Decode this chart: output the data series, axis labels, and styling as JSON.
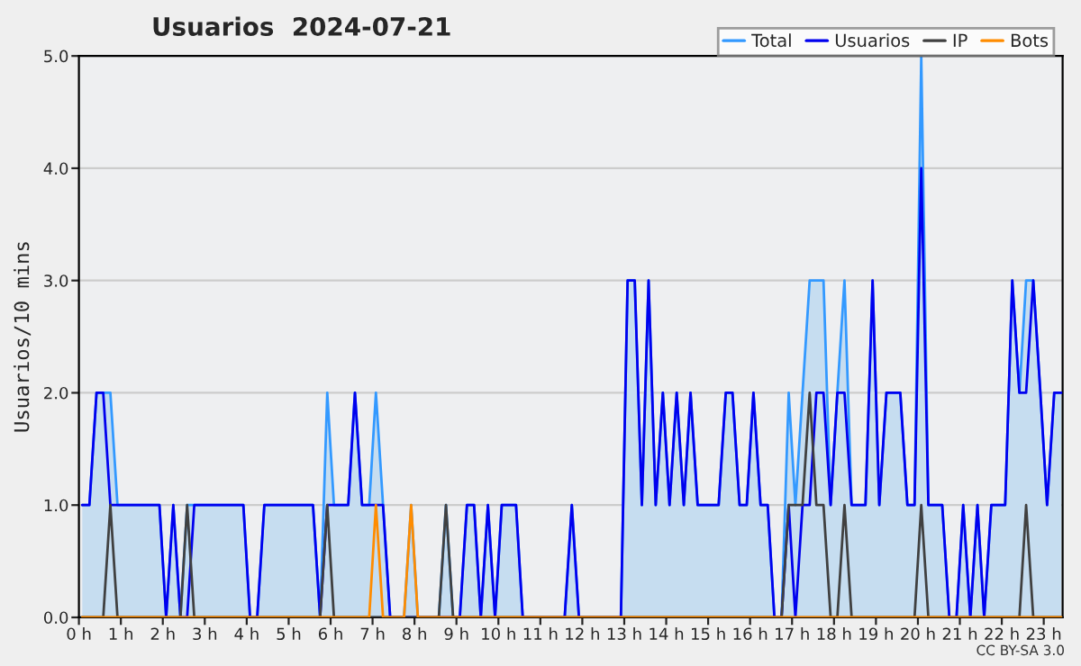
{
  "chart_data": {
    "type": "line",
    "title": "Usuarios  2024-07-21",
    "ylabel": "Usuarios/10 mins",
    "x": [
      0.08,
      0.25,
      0.42,
      0.58,
      0.75,
      0.92,
      1.08,
      1.25,
      1.42,
      1.58,
      1.75,
      1.92,
      2.08,
      2.25,
      2.42,
      2.58,
      2.75,
      2.92,
      3.08,
      3.25,
      3.42,
      3.58,
      3.75,
      3.92,
      4.08,
      4.25,
      4.42,
      4.58,
      4.75,
      4.92,
      5.08,
      5.25,
      5.42,
      5.58,
      5.75,
      5.92,
      6.08,
      6.25,
      6.42,
      6.58,
      6.75,
      6.92,
      7.08,
      7.25,
      7.42,
      7.58,
      7.75,
      7.92,
      8.08,
      8.25,
      8.42,
      8.58,
      8.75,
      8.92,
      9.08,
      9.25,
      9.42,
      9.58,
      9.75,
      9.92,
      10.08,
      10.25,
      10.42,
      10.58,
      10.75,
      10.92,
      11.08,
      11.25,
      11.42,
      11.58,
      11.75,
      11.92,
      12.08,
      12.25,
      12.42,
      12.58,
      12.75,
      12.92,
      13.08,
      13.25,
      13.42,
      13.58,
      13.75,
      13.92,
      14.08,
      14.25,
      14.42,
      14.58,
      14.75,
      14.92,
      15.08,
      15.25,
      15.42,
      15.58,
      15.75,
      15.92,
      16.08,
      16.25,
      16.42,
      16.58,
      16.75,
      16.92,
      17.08,
      17.25,
      17.42,
      17.58,
      17.75,
      17.92,
      18.08,
      18.25,
      18.42,
      18.58,
      18.75,
      18.92,
      19.08,
      19.25,
      19.42,
      19.58,
      19.75,
      19.92,
      20.08,
      20.25,
      20.42,
      20.58,
      20.75,
      20.92,
      21.08,
      21.25,
      21.42,
      21.58,
      21.75,
      21.92,
      22.08,
      22.25,
      22.42,
      22.58,
      22.75,
      22.92,
      23.08,
      23.25,
      23.42
    ],
    "series": [
      {
        "name": "Total",
        "type": "area",
        "color": "#3399ff",
        "values": [
          1,
          1,
          2,
          2,
          2,
          1,
          1,
          1,
          1,
          1,
          1,
          1,
          0,
          1,
          0,
          1,
          1,
          1,
          1,
          1,
          1,
          1,
          1,
          1,
          0,
          0,
          1,
          1,
          1,
          1,
          1,
          1,
          1,
          1,
          0,
          2,
          1,
          1,
          1,
          2,
          1,
          1,
          2,
          1,
          0,
          0,
          0,
          1,
          0,
          0,
          0,
          0,
          1,
          0,
          0,
          1,
          1,
          0,
          1,
          0,
          1,
          1,
          1,
          0,
          0,
          0,
          0,
          0,
          0,
          0,
          1,
          0,
          0,
          0,
          0,
          0,
          0,
          0,
          3,
          3,
          1,
          3,
          1,
          2,
          1,
          2,
          1,
          2,
          1,
          1,
          1,
          1,
          2,
          2,
          1,
          1,
          2,
          1,
          1,
          0,
          0,
          2,
          1,
          2,
          3,
          3,
          3,
          1,
          2,
          3,
          1,
          1,
          1,
          3,
          1,
          2,
          2,
          2,
          1,
          1,
          5,
          1,
          1,
          1,
          0,
          0,
          1,
          0,
          1,
          0,
          1,
          1,
          1,
          3,
          2,
          3,
          3,
          2,
          1,
          2,
          2
        ]
      },
      {
        "name": "Usuarios",
        "color": "#0000ee",
        "values": [
          1,
          1,
          2,
          2,
          1,
          1,
          1,
          1,
          1,
          1,
          1,
          1,
          0,
          1,
          0,
          0,
          1,
          1,
          1,
          1,
          1,
          1,
          1,
          1,
          0,
          0,
          1,
          1,
          1,
          1,
          1,
          1,
          1,
          1,
          0,
          1,
          1,
          1,
          1,
          2,
          1,
          1,
          1,
          1,
          0,
          0,
          0,
          0,
          0,
          0,
          0,
          0,
          0,
          0,
          0,
          1,
          1,
          0,
          1,
          0,
          1,
          1,
          1,
          0,
          0,
          0,
          0,
          0,
          0,
          0,
          1,
          0,
          0,
          0,
          0,
          0,
          0,
          0,
          3,
          3,
          1,
          3,
          1,
          2,
          1,
          2,
          1,
          2,
          1,
          1,
          1,
          1,
          2,
          2,
          1,
          1,
          2,
          1,
          1,
          0,
          0,
          1,
          0,
          1,
          1,
          2,
          2,
          1,
          2,
          2,
          1,
          1,
          1,
          3,
          1,
          2,
          2,
          2,
          1,
          1,
          4,
          1,
          1,
          1,
          0,
          0,
          1,
          0,
          1,
          0,
          1,
          1,
          1,
          3,
          2,
          2,
          3,
          2,
          1,
          2,
          2
        ]
      },
      {
        "name": "IP",
        "color": "#404040",
        "values": [
          0,
          0,
          0,
          0,
          1,
          0,
          0,
          0,
          0,
          0,
          0,
          0,
          0,
          0,
          0,
          1,
          0,
          0,
          0,
          0,
          0,
          0,
          0,
          0,
          0,
          0,
          0,
          0,
          0,
          0,
          0,
          0,
          0,
          0,
          0,
          1,
          0,
          0,
          0,
          0,
          0,
          0,
          0,
          0,
          0,
          0,
          0,
          0,
          0,
          0,
          0,
          0,
          1,
          0,
          0,
          0,
          0,
          0,
          0,
          0,
          0,
          0,
          0,
          0,
          0,
          0,
          0,
          0,
          0,
          0,
          0,
          0,
          0,
          0,
          0,
          0,
          0,
          0,
          0,
          0,
          0,
          0,
          0,
          0,
          0,
          0,
          0,
          0,
          0,
          0,
          0,
          0,
          0,
          0,
          0,
          0,
          0,
          0,
          0,
          0,
          0,
          1,
          1,
          1,
          2,
          1,
          1,
          0,
          0,
          1,
          0,
          0,
          0,
          0,
          0,
          0,
          0,
          0,
          0,
          0,
          1,
          0,
          0,
          0,
          0,
          0,
          0,
          0,
          0,
          0,
          0,
          0,
          0,
          0,
          0,
          1,
          0,
          0,
          0,
          0,
          0
        ]
      },
      {
        "name": "Bots",
        "color": "#ff8c00",
        "values": [
          0,
          0,
          0,
          0,
          0,
          0,
          0,
          0,
          0,
          0,
          0,
          0,
          0,
          0,
          0,
          0,
          0,
          0,
          0,
          0,
          0,
          0,
          0,
          0,
          0,
          0,
          0,
          0,
          0,
          0,
          0,
          0,
          0,
          0,
          0,
          0,
          0,
          0,
          0,
          0,
          0,
          0,
          1,
          0,
          0,
          0,
          0,
          1,
          0,
          0,
          0,
          0,
          0,
          0,
          0,
          0,
          0,
          0,
          0,
          0,
          0,
          0,
          0,
          0,
          0,
          0,
          0,
          0,
          0,
          0,
          0,
          0,
          0,
          0,
          0,
          0,
          0,
          0,
          0,
          0,
          0,
          0,
          0,
          0,
          0,
          0,
          0,
          0,
          0,
          0,
          0,
          0,
          0,
          0,
          0,
          0,
          0,
          0,
          0,
          0,
          0,
          0,
          0,
          0,
          0,
          0,
          0,
          0,
          0,
          0,
          0,
          0,
          0,
          0,
          0,
          0,
          0,
          0,
          0,
          0,
          0,
          0,
          0,
          0,
          0,
          0,
          0,
          0,
          0,
          0,
          0,
          0,
          0,
          0,
          0,
          0,
          0,
          0,
          0,
          0,
          0
        ]
      }
    ],
    "xlim": [
      0,
      23.45
    ],
    "xticks": [
      {
        "value": 0,
        "label": "0 h"
      },
      {
        "value": 1,
        "label": "1 h"
      },
      {
        "value": 2,
        "label": "2 h"
      },
      {
        "value": 3,
        "label": "3 h"
      },
      {
        "value": 4,
        "label": "4 h"
      },
      {
        "value": 5,
        "label": "5 h"
      },
      {
        "value": 6,
        "label": "6 h"
      },
      {
        "value": 7,
        "label": "7 h"
      },
      {
        "value": 8,
        "label": "8 h"
      },
      {
        "value": 9,
        "label": "9 h"
      },
      {
        "value": 10,
        "label": "10 h"
      },
      {
        "value": 11,
        "label": "11 h"
      },
      {
        "value": 12,
        "label": "12 h"
      },
      {
        "value": 13,
        "label": "13 h"
      },
      {
        "value": 14,
        "label": "14 h"
      },
      {
        "value": 15,
        "label": "15 h"
      },
      {
        "value": 16,
        "label": "16 h"
      },
      {
        "value": 17,
        "label": "17 h"
      },
      {
        "value": 18,
        "label": "18 h"
      },
      {
        "value": 19,
        "label": "19 h"
      },
      {
        "value": 20,
        "label": "20 h"
      },
      {
        "value": 21,
        "label": "21 h"
      },
      {
        "value": 22,
        "label": "22 h"
      },
      {
        "value": 23,
        "label": "23 h"
      }
    ],
    "ylim": [
      0,
      5
    ],
    "yticks": [
      {
        "value": 0,
        "label": "0.0"
      },
      {
        "value": 1,
        "label": "1.0"
      },
      {
        "value": 2,
        "label": "2.0"
      },
      {
        "value": 3,
        "label": "3.0"
      },
      {
        "value": 4,
        "label": "4.0"
      },
      {
        "value": 5,
        "label": "5.0"
      }
    ],
    "grid": "y",
    "legend": "top right",
    "line_style": "solid",
    "marker": "none",
    "annotations": [
      "CC BY-SA 3.0"
    ]
  }
}
